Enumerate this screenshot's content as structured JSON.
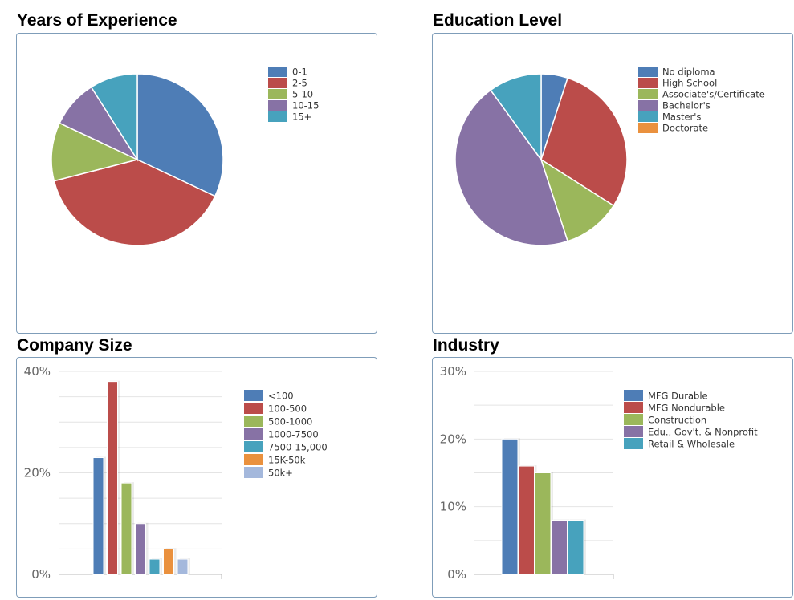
{
  "panels": [
    {
      "title": "Years of Experience",
      "chart_data": {
        "type": "pie",
        "categories": [
          "0-1",
          "2-5",
          "5-10",
          "10-15",
          "15+"
        ],
        "values": [
          32,
          39,
          11,
          9,
          9
        ],
        "colors": [
          "#4e7db6",
          "#bb4c4a",
          "#9bb75b",
          "#8772a5",
          "#47a2bd"
        ],
        "legend": "top-right"
      }
    },
    {
      "title": "Education Level",
      "chart_data": {
        "type": "pie",
        "categories": [
          "No diploma",
          "High School",
          "Associate's/Certificate",
          "Bachelor's",
          "Master's",
          "Doctorate"
        ],
        "values": [
          5,
          29,
          11,
          45,
          10,
          0
        ],
        "colors": [
          "#4e7db6",
          "#bb4c4a",
          "#9bb75b",
          "#8772a5",
          "#47a2bd",
          "#ea913e"
        ],
        "legend": "top-right"
      }
    },
    {
      "title": "Company Size",
      "chart_data": {
        "type": "bar",
        "categories": [
          "<100",
          "100-500",
          "500-1000",
          "1000-7500",
          "7500-15,000",
          "15K-50k",
          "50k+"
        ],
        "values": [
          23,
          38,
          18,
          10,
          3,
          5,
          3
        ],
        "colors": [
          "#4e7db6",
          "#bb4c4a",
          "#9bb75b",
          "#8772a5",
          "#47a2bd",
          "#ea913e",
          "#a4b8dc"
        ],
        "ylim": [
          0,
          40
        ],
        "yticks": [
          "0%",
          "20%",
          "40%"
        ],
        "grid": true,
        "legend": "top-right"
      }
    },
    {
      "title": "Industry",
      "chart_data": {
        "type": "bar",
        "categories": [
          "MFG Durable",
          "MFG Nondurable",
          "Construction",
          "Edu., Gov't. & Nonprofit",
          "Retail & Wholesale"
        ],
        "values": [
          20,
          16,
          15,
          8,
          8
        ],
        "colors": [
          "#4e7db6",
          "#bb4c4a",
          "#9bb75b",
          "#8772a5",
          "#47a2bd"
        ],
        "ylim": [
          0,
          30
        ],
        "yticks": [
          "0%",
          "10%",
          "20%",
          "30%"
        ],
        "grid": true,
        "legend": "top-right"
      }
    }
  ]
}
